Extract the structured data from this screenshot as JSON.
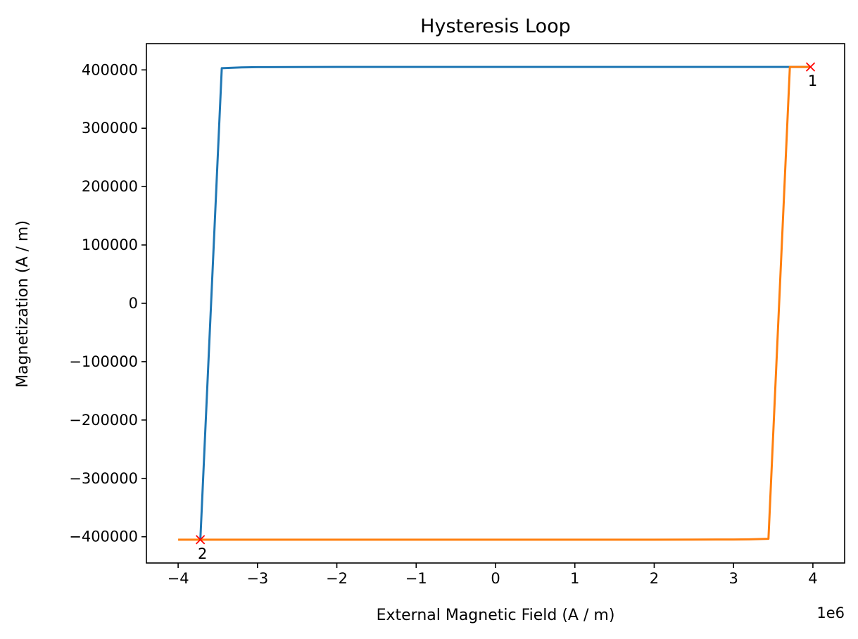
{
  "chart_data": {
    "type": "line",
    "title": "Hysteresis Loop",
    "xlabel": "External Magnetic Field (A / m)",
    "ylabel": "Magnetization (A / m)",
    "x_offset_text": "1e6",
    "xlim": [
      -4.4,
      4.4
    ],
    "ylim": [
      -445000,
      445000
    ],
    "x_scale_factor": 1000000,
    "xticks": [
      -4,
      -3,
      -2,
      -1,
      0,
      1,
      2,
      3,
      4
    ],
    "xtick_labels": [
      "−4",
      "−3",
      "−2",
      "−1",
      "0",
      "1",
      "2",
      "3",
      "4"
    ],
    "yticks": [
      -400000,
      -300000,
      -200000,
      -100000,
      0,
      100000,
      200000,
      300000,
      400000
    ],
    "ytick_labels": [
      "−400000",
      "−300000",
      "−200000",
      "−100000",
      "0",
      "100000",
      "200000",
      "300000",
      "400000"
    ],
    "grid": false,
    "legend": "none",
    "series": [
      {
        "color": "#1f77b4",
        "x": [
          3.97,
          3.0,
          2.0,
          1.0,
          0.0,
          -1.0,
          -2.0,
          -2.5,
          -3.0,
          -3.2,
          -3.45,
          -3.72
        ],
        "y": [
          405000,
          405000,
          405000,
          405000,
          405000,
          405000,
          405000,
          404900,
          404700,
          404300,
          403000,
          -405000
        ]
      },
      {
        "color": "#ff7f0e",
        "x": [
          -4.0,
          -3.0,
          -2.0,
          -1.0,
          0.0,
          1.0,
          2.0,
          2.5,
          3.0,
          3.2,
          3.44,
          3.71,
          3.97
        ],
        "y": [
          -405000,
          -405000,
          -405000,
          -405000,
          -405000,
          -405000,
          -405000,
          -404900,
          -404700,
          -404400,
          -403500,
          405000,
          405000
        ]
      }
    ],
    "markers": [
      {
        "x": 3.97,
        "y": 405000,
        "label": "1",
        "color": "#ff0000"
      },
      {
        "x": -3.72,
        "y": -405000,
        "label": "2",
        "color": "#ff0000"
      }
    ]
  }
}
